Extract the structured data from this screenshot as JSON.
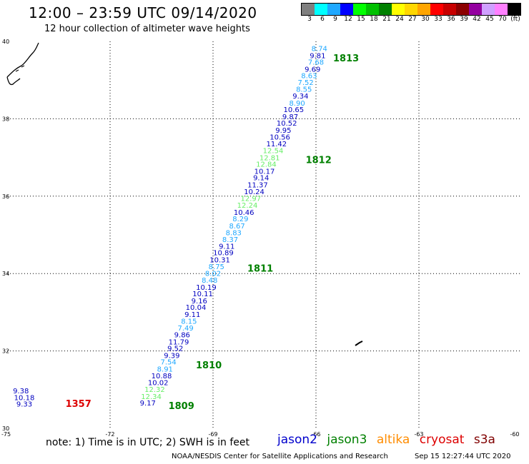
{
  "title": "12:00 – 23:59 UTC 09/14/2020",
  "subtitle": "12 hour collection of altimeter wave heights",
  "legend": {
    "colors": [
      "#7f7f7f",
      "#00ffff",
      "#1fa8ff",
      "#0000ff",
      "#00ff00",
      "#00c000",
      "#008000",
      "#ffff00",
      "#ffd700",
      "#ffa500",
      "#ff0000",
      "#c80000",
      "#8b0000",
      "#9400a0",
      "#d0a0ff",
      "#ff80ff",
      "#000000"
    ],
    "labels": [
      "3",
      "6",
      "9",
      "12",
      "15",
      "18",
      "21",
      "24",
      "27",
      "30",
      "33",
      "36",
      "39",
      "42",
      "45",
      "70",
      "(ft)"
    ]
  },
  "axes": {
    "lon_labels": [
      "-75",
      "-72",
      "-69",
      "-66",
      "-63",
      "-60"
    ],
    "lat_labels": [
      "40",
      "38",
      "36",
      "34",
      "32",
      "30"
    ]
  },
  "chart_data": {
    "type": "scatter",
    "xlim": [
      -75,
      -60
    ],
    "ylim": [
      30,
      40
    ],
    "points": [
      {
        "lon": -65.9,
        "lat": 39.75,
        "v": "8.74",
        "c": "#1fa8ff"
      },
      {
        "lon": -65.95,
        "lat": 39.57,
        "v": "9.81",
        "c": "#0000c0"
      },
      {
        "lon": -66.0,
        "lat": 39.4,
        "v": "7.68",
        "c": "#1fa8ff"
      },
      {
        "lon": -66.1,
        "lat": 39.22,
        "v": "9.69",
        "c": "#0000c0"
      },
      {
        "lon": -66.2,
        "lat": 39.05,
        "v": "8.63",
        "c": "#1fa8ff"
      },
      {
        "lon": -66.3,
        "lat": 38.87,
        "v": "7.52",
        "c": "#1fa8ff"
      },
      {
        "lon": -66.35,
        "lat": 38.7,
        "v": "8.55",
        "c": "#1fa8ff"
      },
      {
        "lon": -66.45,
        "lat": 38.52,
        "v": "9.34",
        "c": "#0000c0"
      },
      {
        "lon": -66.55,
        "lat": 38.34,
        "v": "8.90",
        "c": "#1fa8ff"
      },
      {
        "lon": -66.65,
        "lat": 38.17,
        "v": "10.65",
        "c": "#0000c0"
      },
      {
        "lon": -66.75,
        "lat": 37.99,
        "v": "9.87",
        "c": "#0000c0"
      },
      {
        "lon": -66.85,
        "lat": 37.82,
        "v": "10.52",
        "c": "#0000c0"
      },
      {
        "lon": -66.95,
        "lat": 37.64,
        "v": "9.95",
        "c": "#0000c0"
      },
      {
        "lon": -67.05,
        "lat": 37.46,
        "v": "10.56",
        "c": "#0000c0"
      },
      {
        "lon": -67.15,
        "lat": 37.29,
        "v": "11.42",
        "c": "#0000c0"
      },
      {
        "lon": -67.25,
        "lat": 37.11,
        "v": "12.54",
        "c": "#66ee66"
      },
      {
        "lon": -67.35,
        "lat": 36.93,
        "v": "12.81",
        "c": "#66ee66"
      },
      {
        "lon": -67.45,
        "lat": 36.76,
        "v": "12.84",
        "c": "#66ee66"
      },
      {
        "lon": -67.5,
        "lat": 36.58,
        "v": "10.17",
        "c": "#0000c0"
      },
      {
        "lon": -67.6,
        "lat": 36.41,
        "v": "9.14",
        "c": "#0000c0"
      },
      {
        "lon": -67.7,
        "lat": 36.23,
        "v": "11.37",
        "c": "#0000c0"
      },
      {
        "lon": -67.8,
        "lat": 36.05,
        "v": "10.24",
        "c": "#0000c0"
      },
      {
        "lon": -67.9,
        "lat": 35.88,
        "v": "12.97",
        "c": "#66ee66"
      },
      {
        "lon": -68.0,
        "lat": 35.7,
        "v": "12.24",
        "c": "#66ee66"
      },
      {
        "lon": -68.1,
        "lat": 35.52,
        "v": "10.46",
        "c": "#0000c0"
      },
      {
        "lon": -68.2,
        "lat": 35.35,
        "v": "8.29",
        "c": "#1fa8ff"
      },
      {
        "lon": -68.3,
        "lat": 35.17,
        "v": "8.67",
        "c": "#1fa8ff"
      },
      {
        "lon": -68.4,
        "lat": 34.99,
        "v": "8.83",
        "c": "#1fa8ff"
      },
      {
        "lon": -68.5,
        "lat": 34.82,
        "v": "8.37",
        "c": "#1fa8ff"
      },
      {
        "lon": -68.6,
        "lat": 34.64,
        "v": "9.11",
        "c": "#0000c0"
      },
      {
        "lon": -68.7,
        "lat": 34.47,
        "v": "10.89",
        "c": "#0000c0"
      },
      {
        "lon": -68.8,
        "lat": 34.29,
        "v": "10.31",
        "c": "#0000c0"
      },
      {
        "lon": -68.9,
        "lat": 34.11,
        "v": "8.75",
        "c": "#1fa8ff"
      },
      {
        "lon": -69.0,
        "lat": 33.94,
        "v": "8.02",
        "c": "#1fa8ff"
      },
      {
        "lon": -69.1,
        "lat": 33.76,
        "v": "8.48",
        "c": "#1fa8ff"
      },
      {
        "lon": -69.2,
        "lat": 33.58,
        "v": "10.19",
        "c": "#0000c0"
      },
      {
        "lon": -69.3,
        "lat": 33.41,
        "v": "10.11",
        "c": "#0000c0"
      },
      {
        "lon": -69.4,
        "lat": 33.23,
        "v": "9.16",
        "c": "#0000c0"
      },
      {
        "lon": -69.5,
        "lat": 33.06,
        "v": "10.04",
        "c": "#0000c0"
      },
      {
        "lon": -69.6,
        "lat": 32.88,
        "v": "9.11",
        "c": "#0000c0"
      },
      {
        "lon": -69.7,
        "lat": 32.7,
        "v": "8.15",
        "c": "#1fa8ff"
      },
      {
        "lon": -69.8,
        "lat": 32.53,
        "v": "7.49",
        "c": "#1fa8ff"
      },
      {
        "lon": -69.9,
        "lat": 32.35,
        "v": "9.86",
        "c": "#0000c0"
      },
      {
        "lon": -70.0,
        "lat": 32.17,
        "v": "11.79",
        "c": "#0000c0"
      },
      {
        "lon": -70.1,
        "lat": 32.0,
        "v": "9.52",
        "c": "#0000c0"
      },
      {
        "lon": -70.2,
        "lat": 31.82,
        "v": "9.39",
        "c": "#0000c0"
      },
      {
        "lon": -70.3,
        "lat": 31.65,
        "v": "7.54",
        "c": "#1fa8ff"
      },
      {
        "lon": -70.4,
        "lat": 31.47,
        "v": "8.91",
        "c": "#1fa8ff"
      },
      {
        "lon": -70.5,
        "lat": 31.29,
        "v": "10.88",
        "c": "#0000c0"
      },
      {
        "lon": -70.6,
        "lat": 31.12,
        "v": "10.02",
        "c": "#0000c0"
      },
      {
        "lon": -70.7,
        "lat": 30.94,
        "v": "12.32",
        "c": "#66ee66"
      },
      {
        "lon": -70.8,
        "lat": 30.76,
        "v": "12.34",
        "c": "#66ee66"
      },
      {
        "lon": -70.9,
        "lat": 30.59,
        "v": "9.17",
        "c": "#0000c0"
      },
      {
        "lon": -74.6,
        "lat": 30.9,
        "v": "9.38",
        "c": "#0000c0"
      },
      {
        "lon": -74.5,
        "lat": 30.73,
        "v": "10.18",
        "c": "#0000c0"
      },
      {
        "lon": -74.5,
        "lat": 30.56,
        "v": "9.33",
        "c": "#0000c0"
      }
    ],
    "track_labels": [
      {
        "text": "1813",
        "lon": -65.5,
        "lat": 39.48,
        "c": "#008000"
      },
      {
        "text": "1812",
        "lon": -66.3,
        "lat": 36.85,
        "c": "#008000"
      },
      {
        "text": "1811",
        "lon": -68.0,
        "lat": 34.05,
        "c": "#008000"
      },
      {
        "text": "1810",
        "lon": -69.5,
        "lat": 31.55,
        "c": "#008000"
      },
      {
        "text": "1809",
        "lon": -70.3,
        "lat": 30.5,
        "c": "#008000"
      },
      {
        "text": "1357",
        "lon": -73.3,
        "lat": 30.55,
        "c": "#dd0000"
      }
    ]
  },
  "footer": {
    "note": "note:  1) Time is in UTC;  2) SWH is in feet",
    "satellites": [
      {
        "name": "jason2",
        "color": "#0000cc"
      },
      {
        "name": "jason3",
        "color": "#008000"
      },
      {
        "name": "altika",
        "color": "#ff8c00"
      },
      {
        "name": "cryosat",
        "color": "#dd0000"
      },
      {
        "name": "s3a",
        "color": "#800000"
      }
    ],
    "credit": "NOAA/NESDIS Center for Satellite Applications and Research",
    "timestamp": "Sep 15 12:27:44 UTC 2020"
  }
}
